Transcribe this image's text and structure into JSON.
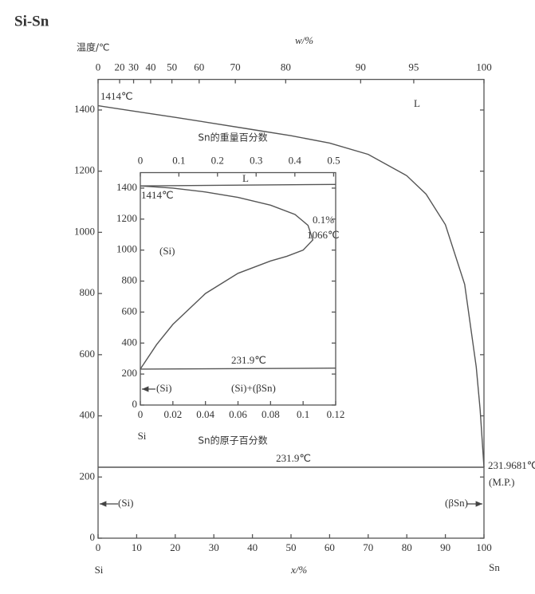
{
  "chart_data": [
    {
      "type": "line",
      "title": "Si-Sn",
      "ylabel": "温度/℃",
      "xlabel": "x/%",
      "top_xlabel": "w/%",
      "xlim": [
        0,
        100
      ],
      "ylim": [
        0,
        1500
      ],
      "xticks": [
        0,
        10,
        20,
        30,
        40,
        50,
        60,
        70,
        80,
        90,
        100
      ],
      "yticks": [
        0,
        200,
        400,
        600,
        800,
        1000,
        1200,
        1400
      ],
      "top_xticks": [
        0,
        20,
        30,
        40,
        50,
        60,
        70,
        80,
        90,
        95,
        100
      ],
      "series": [
        {
          "color": "#555555",
          "x": [
            0,
            10,
            20,
            30,
            40,
            50,
            60,
            70,
            80,
            85,
            90,
            95,
            98,
            99,
            100
          ],
          "values": [
            1414,
            1395,
            1376,
            1356,
            1336,
            1316,
            1292,
            1255,
            1185,
            1125,
            1025,
            830,
            560,
            420,
            232
          ]
        },
        {
          "color": "#555555",
          "x": [
            0,
            100
          ],
          "values": [
            231.9,
            231.9681
          ]
        }
      ],
      "annotations": [
        "1414℃",
        "L",
        "231.9℃",
        "231.9681℃",
        "(M.P.)",
        "(Si)",
        "(βSn)",
        "Si",
        "Sn"
      ]
    },
    {
      "type": "line",
      "xlabel": "Sn的原子百分数",
      "top_xlabel": "Sn的重量百分数",
      "xlim": [
        0,
        0.12
      ],
      "ylim": [
        0,
        1500
      ],
      "xticks": [
        0,
        0.02,
        0.04,
        0.06,
        0.08,
        0.1,
        0.12
      ],
      "yticks": [
        0,
        200,
        400,
        600,
        800,
        1000,
        1200,
        1400
      ],
      "top_xticks": [
        0,
        0.1,
        0.2,
        0.3,
        0.4,
        0.5
      ],
      "series": [
        {
          "color": "#555555",
          "x": [
            0,
            0.02,
            0.04,
            0.06,
            0.08,
            0.095,
            0.103,
            0.106,
            0.1,
            0.09,
            0.08,
            0.06,
            0.04,
            0.02,
            0.01,
            0
          ],
          "values": [
            1414,
            1400,
            1375,
            1340,
            1290,
            1230,
            1160,
            1066,
            1000,
            960,
            930,
            850,
            720,
            520,
            390,
            232
          ]
        },
        {
          "color": "#555555",
          "x": [
            0,
            0.12
          ],
          "values": [
            1414,
            1424
          ]
        },
        {
          "color": "#555555",
          "x": [
            0,
            0.12
          ],
          "values": [
            231.9,
            238
          ]
        }
      ],
      "annotations": [
        "1414℃",
        "L",
        "0.1%",
        "1066℃",
        "(Si)",
        "231.9℃",
        "(Si)",
        "(Si)+(βSn)",
        "Si"
      ]
    }
  ]
}
